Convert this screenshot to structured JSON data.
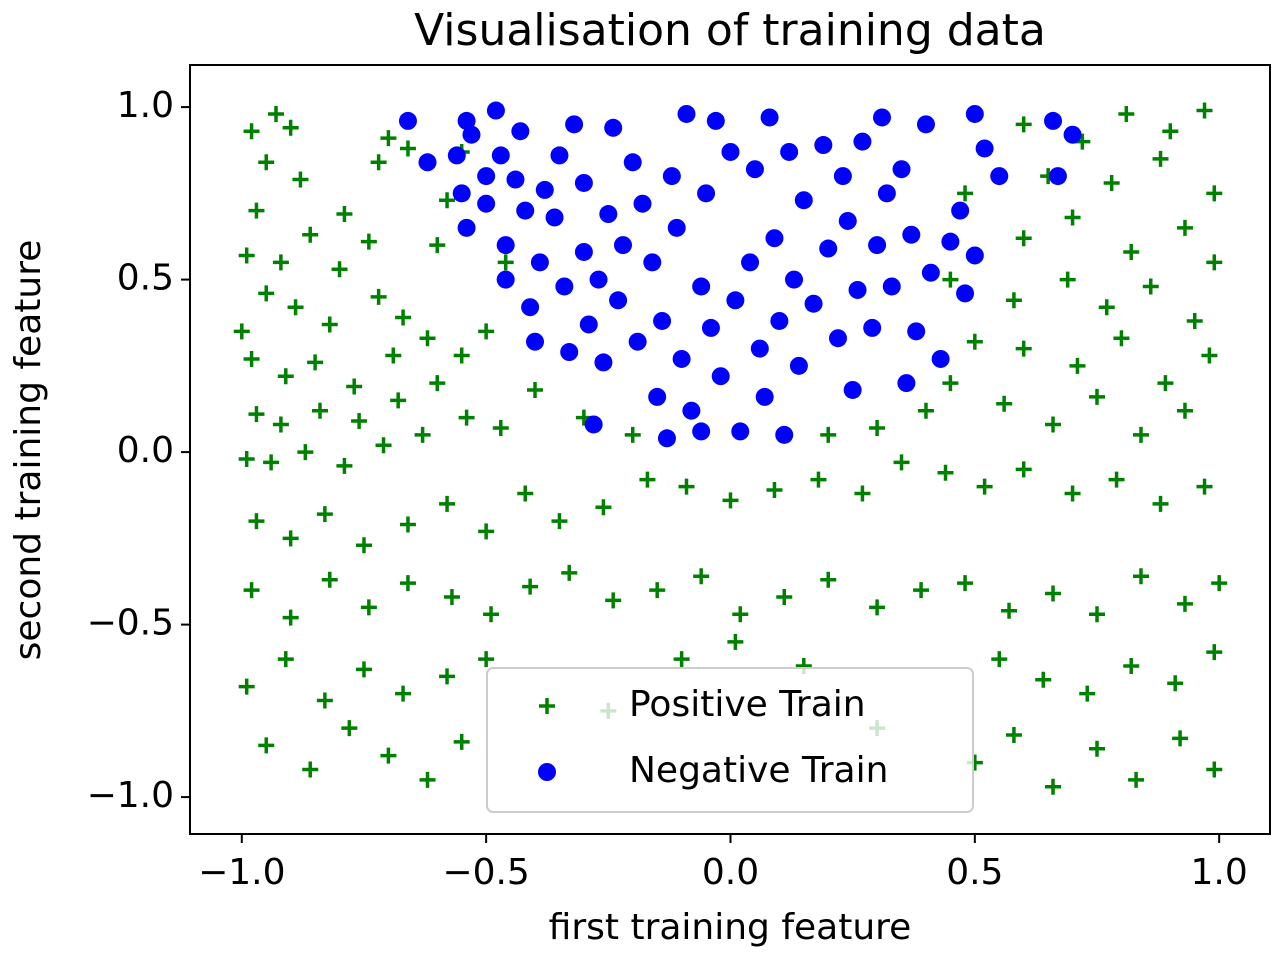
{
  "chart_data": {
    "type": "scatter",
    "title": "Visualisation of training data",
    "x_label": "first training feature",
    "y_label": "second training feature",
    "xlim": [
      -1.106,
      1.104
    ],
    "ylim": [
      -1.107,
      1.122
    ],
    "xticks": [
      {
        "value": -1.0,
        "label": "−1.0"
      },
      {
        "value": -0.5,
        "label": "−0.5"
      },
      {
        "value": 0.0,
        "label": "0.0"
      },
      0.5,
      {
        "value": 1.0,
        "label": "1.0"
      }
    ],
    "yticks": [
      {
        "value": -1.0,
        "label": "−1.0"
      },
      {
        "value": -0.5,
        "label": "−0.5"
      },
      {
        "value": 0.0,
        "label": "0.0"
      },
      0.5,
      {
        "value": 1.0,
        "label": "1.0"
      }
    ],
    "grid": false,
    "legend": "lower center",
    "series": [
      {
        "name": "Positive Train",
        "color": "#008000",
        "marker": "+",
        "x": [
          -0.98,
          -0.93,
          -0.95,
          -0.9,
          -0.97,
          -0.88,
          -0.79,
          -0.72,
          -0.7,
          -0.66,
          -0.99,
          -0.92,
          -0.86,
          -0.8,
          -0.74,
          -0.95,
          -1.0,
          -0.89,
          -0.82,
          -0.72,
          -0.67,
          -0.98,
          -0.91,
          -0.85,
          -0.77,
          -0.69,
          -0.62,
          -0.97,
          -0.92,
          -0.84,
          -0.76,
          -0.68,
          -0.6,
          -0.55,
          -0.99,
          -0.94,
          -0.87,
          -0.79,
          -0.71,
          -0.63,
          -0.54,
          -0.47,
          -0.97,
          -0.9,
          -0.83,
          -0.75,
          -0.66,
          -0.58,
          -0.5,
          -0.42,
          -0.35,
          -0.26,
          -0.17,
          -0.09,
          0.0,
          0.09,
          0.18,
          0.27,
          0.35,
          0.44,
          0.52,
          0.6,
          0.7,
          0.79,
          0.88,
          0.97,
          -0.98,
          -0.9,
          -0.82,
          -0.74,
          -0.66,
          -0.57,
          -0.49,
          -0.41,
          -0.33,
          -0.24,
          -0.15,
          -0.06,
          0.02,
          0.11,
          0.2,
          0.3,
          0.39,
          0.48,
          0.57,
          0.66,
          0.75,
          0.84,
          0.93,
          1.0,
          -0.99,
          -0.91,
          -0.83,
          -0.75,
          -0.67,
          -0.58,
          -0.5,
          -0.1,
          0.01,
          0.15,
          0.55,
          0.64,
          0.73,
          0.82,
          0.91,
          0.99,
          -0.95,
          -0.86,
          -0.78,
          -0.7,
          -0.62,
          -0.55,
          0.5,
          0.58,
          0.66,
          0.75,
          0.83,
          0.92,
          0.99,
          0.6,
          0.72,
          0.81,
          0.9,
          0.97,
          0.65,
          0.78,
          0.88,
          0.99,
          0.6,
          0.7,
          0.82,
          0.93,
          0.99,
          0.58,
          0.69,
          0.77,
          0.86,
          0.95,
          0.6,
          0.71,
          0.8,
          0.89,
          0.98,
          0.56,
          0.66,
          0.75,
          0.84,
          0.93,
          0.45,
          0.4,
          0.3,
          0.2,
          -0.2,
          -0.3,
          -0.4,
          -0.5,
          -0.46,
          -0.6,
          -0.55,
          -0.58,
          0.48,
          0.45,
          0.5,
          -0.25,
          0.3
        ],
        "values": [
          0.93,
          0.98,
          0.84,
          0.94,
          0.7,
          0.79,
          0.69,
          0.84,
          0.91,
          0.88,
          0.57,
          0.55,
          0.63,
          0.53,
          0.61,
          0.46,
          0.35,
          0.42,
          0.37,
          0.45,
          0.39,
          0.27,
          0.22,
          0.26,
          0.19,
          0.28,
          0.33,
          0.11,
          0.08,
          0.12,
          0.09,
          0.15,
          0.2,
          0.28,
          -0.02,
          -0.03,
          0.0,
          -0.04,
          0.02,
          0.05,
          0.1,
          0.07,
          -0.2,
          -0.25,
          -0.18,
          -0.27,
          -0.21,
          -0.15,
          -0.23,
          -0.12,
          -0.2,
          -0.16,
          -0.08,
          -0.1,
          -0.14,
          -0.11,
          -0.08,
          -0.12,
          -0.03,
          -0.06,
          -0.1,
          -0.05,
          -0.12,
          -0.08,
          -0.15,
          -0.1,
          -0.4,
          -0.48,
          -0.37,
          -0.45,
          -0.38,
          -0.42,
          -0.47,
          -0.39,
          -0.35,
          -0.43,
          -0.4,
          -0.36,
          -0.47,
          -0.42,
          -0.37,
          -0.45,
          -0.4,
          -0.38,
          -0.46,
          -0.41,
          -0.47,
          -0.36,
          -0.44,
          -0.38,
          -0.68,
          -0.6,
          -0.72,
          -0.63,
          -0.7,
          -0.65,
          -0.6,
          -0.6,
          -0.55,
          -0.62,
          -0.6,
          -0.66,
          -0.7,
          -0.62,
          -0.67,
          -0.58,
          -0.85,
          -0.92,
          -0.8,
          -0.88,
          -0.95,
          -0.84,
          -0.9,
          -0.82,
          -0.97,
          -0.86,
          -0.95,
          -0.83,
          -0.92,
          0.95,
          0.9,
          0.98,
          0.93,
          0.99,
          0.8,
          0.78,
          0.85,
          0.75,
          0.62,
          0.68,
          0.58,
          0.65,
          0.55,
          0.44,
          0.5,
          0.42,
          0.48,
          0.38,
          0.3,
          0.25,
          0.33,
          0.2,
          0.28,
          0.14,
          0.08,
          0.16,
          0.05,
          0.12,
          0.2,
          0.12,
          0.07,
          0.05,
          0.05,
          0.1,
          0.18,
          0.35,
          0.55,
          0.6,
          0.87,
          0.73,
          0.75,
          0.5,
          0.32,
          -0.75,
          -0.8
        ]
      },
      {
        "name": "Negative Train",
        "color": "#0000ff",
        "marker": "o",
        "x": [
          -0.66,
          -0.62,
          -0.56,
          -0.54,
          -0.55,
          -0.54,
          -0.53,
          -0.5,
          -0.5,
          -0.48,
          -0.47,
          -0.46,
          -0.46,
          -0.44,
          -0.43,
          -0.42,
          -0.41,
          -0.4,
          -0.39,
          -0.38,
          -0.36,
          -0.35,
          -0.34,
          -0.33,
          -0.32,
          -0.3,
          -0.3,
          -0.29,
          -0.28,
          -0.27,
          -0.26,
          -0.25,
          -0.24,
          -0.23,
          -0.22,
          -0.2,
          -0.19,
          -0.18,
          -0.16,
          -0.15,
          -0.14,
          -0.13,
          -0.12,
          -0.11,
          -0.1,
          -0.09,
          -0.08,
          -0.06,
          -0.05,
          -0.04,
          -0.03,
          -0.02,
          0.0,
          0.01,
          0.02,
          0.04,
          0.05,
          0.06,
          0.07,
          0.08,
          0.09,
          0.1,
          0.11,
          0.12,
          0.13,
          0.14,
          0.15,
          0.17,
          0.19,
          0.2,
          0.22,
          0.23,
          0.24,
          0.25,
          0.26,
          0.27,
          0.29,
          0.3,
          0.31,
          0.32,
          0.33,
          0.35,
          0.36,
          0.37,
          0.38,
          0.4,
          0.41,
          0.43,
          0.45,
          0.47,
          0.48,
          0.5,
          0.52,
          0.55,
          0.66,
          0.67,
          0.7,
          0.5,
          -0.06
        ],
        "values": [
          0.96,
          0.84,
          0.86,
          0.96,
          0.75,
          0.65,
          0.92,
          0.8,
          0.72,
          0.99,
          0.86,
          0.6,
          0.5,
          0.79,
          0.93,
          0.7,
          0.42,
          0.32,
          0.55,
          0.76,
          0.68,
          0.86,
          0.48,
          0.29,
          0.95,
          0.78,
          0.58,
          0.37,
          0.08,
          0.5,
          0.26,
          0.69,
          0.94,
          0.44,
          0.6,
          0.84,
          0.32,
          0.72,
          0.55,
          0.16,
          0.38,
          0.04,
          0.8,
          0.65,
          0.27,
          0.98,
          0.12,
          0.48,
          0.75,
          0.36,
          0.96,
          0.22,
          0.87,
          0.44,
          0.06,
          0.55,
          0.82,
          0.3,
          0.16,
          0.97,
          0.62,
          0.38,
          0.05,
          0.87,
          0.5,
          0.25,
          0.73,
          0.43,
          0.89,
          0.59,
          0.33,
          0.8,
          0.67,
          0.18,
          0.47,
          0.9,
          0.36,
          0.6,
          0.97,
          0.75,
          0.48,
          0.82,
          0.2,
          0.63,
          0.35,
          0.95,
          0.52,
          0.27,
          0.61,
          0.7,
          0.46,
          0.98,
          0.88,
          0.8,
          0.96,
          0.8,
          0.92,
          0.57,
          0.06
        ]
      }
    ]
  }
}
